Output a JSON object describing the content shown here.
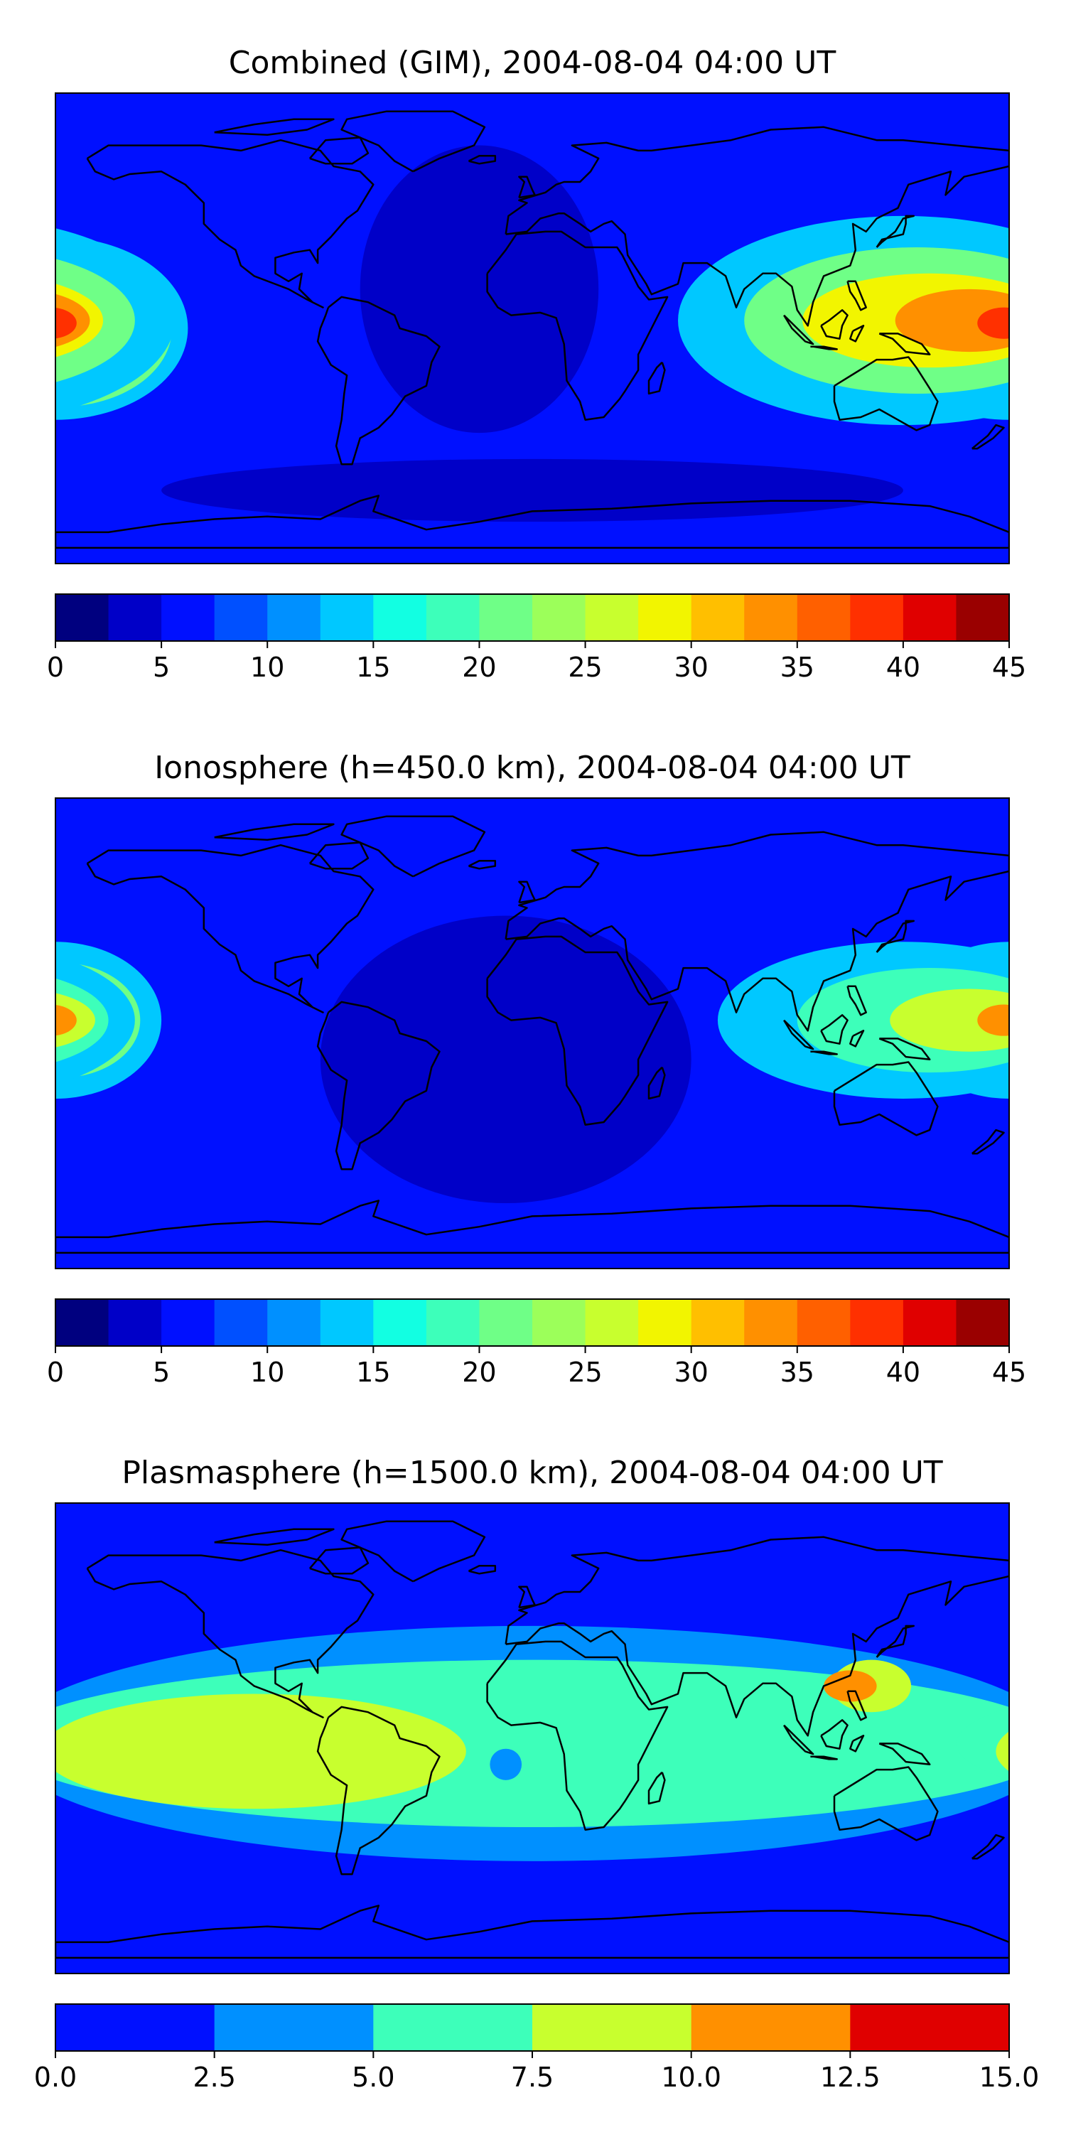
{
  "figure": {
    "panels": [
      {
        "title": "Combined (GIM), 2004-08-04 04:00 UT"
      },
      {
        "title": "Ionosphere  (h=450.0 km), 2004-08-04 04:00 UT"
      },
      {
        "title": "Plasmasphere (h=1500.0 km), 2004-08-04 04:00 UT"
      }
    ]
  },
  "chart_data": [
    {
      "type": "heatmap",
      "title": "Combined (GIM), 2004-08-04 04:00 UT",
      "map_projection": "plate-carree, global, coastlines",
      "colormap": "jet",
      "colorbar": {
        "levels": [
          0,
          2.5,
          5,
          7.5,
          10,
          12.5,
          15,
          17.5,
          20,
          22.5,
          25,
          27.5,
          30,
          32.5,
          35,
          37.5,
          40,
          42.5,
          45
        ],
        "tick_values": [
          0,
          5,
          10,
          15,
          20,
          25,
          30,
          35,
          40,
          45
        ],
        "tick_labels": [
          "0",
          "5",
          "10",
          "15",
          "20",
          "25",
          "30",
          "35",
          "40",
          "45"
        ],
        "colors": [
          "#00007f",
          "#0000c8",
          "#0010ff",
          "#0050ff",
          "#0090ff",
          "#00c8ff",
          "#12ffe2",
          "#3dffba",
          "#6fff87",
          "#9cff5a",
          "#c8ff2e",
          "#f2f500",
          "#ffbf00",
          "#ff9000",
          "#ff6000",
          "#ff3000",
          "#e00000",
          "#9a0000"
        ]
      },
      "background_level": 5,
      "regions": [
        {
          "lon": -180,
          "lat": 0,
          "rx": 50,
          "ry": 35,
          "level": 12.5
        },
        {
          "lon": -178,
          "lat": 0,
          "rx": 42,
          "ry": 30,
          "level": 20
        },
        {
          "lon": -178,
          "lat": 0,
          "rx": 30,
          "ry": 22,
          "level": 27.5
        },
        {
          "lon": -178,
          "lat": 0,
          "rx": 16,
          "ry": 12,
          "level": 35
        },
        {
          "lon": -179,
          "lat": 0,
          "rx": 8,
          "ry": 6,
          "level": 40
        },
        {
          "lon": 140,
          "lat": 3,
          "rx": 85,
          "ry": 40,
          "level": 12.5
        },
        {
          "lon": 145,
          "lat": 3,
          "rx": 65,
          "ry": 28,
          "level": 20
        },
        {
          "lon": 150,
          "lat": 3,
          "rx": 48,
          "ry": 18,
          "level": 27.5
        },
        {
          "lon": 165,
          "lat": 3,
          "rx": 28,
          "ry": 12,
          "level": 32.5
        },
        {
          "lon": 178,
          "lat": 2,
          "rx": 10,
          "ry": 6,
          "level": 37.5
        },
        {
          "lon": -20,
          "lat": 15,
          "rx": 45,
          "ry": 55,
          "level": 2.5
        },
        {
          "lon": 0,
          "lat": -62,
          "rx": 140,
          "ry": 12,
          "level": 2.5
        }
      ]
    },
    {
      "type": "heatmap",
      "title": "Ionosphere  (h=450.0 km), 2004-08-04 04:00 UT",
      "map_projection": "plate-carree, global, coastlines",
      "colormap": "jet",
      "colorbar": {
        "levels": [
          0,
          2.5,
          5,
          7.5,
          10,
          12.5,
          15,
          17.5,
          20,
          22.5,
          25,
          27.5,
          30,
          32.5,
          35,
          37.5,
          40,
          42.5,
          45
        ],
        "tick_values": [
          0,
          5,
          10,
          15,
          20,
          25,
          30,
          35,
          40,
          45
        ],
        "tick_labels": [
          "0",
          "5",
          "10",
          "15",
          "20",
          "25",
          "30",
          "35",
          "40",
          "45"
        ],
        "colors": [
          "#00007f",
          "#0000c8",
          "#0010ff",
          "#0050ff",
          "#0090ff",
          "#00c8ff",
          "#12ffe2",
          "#3dffba",
          "#6fff87",
          "#9cff5a",
          "#c8ff2e",
          "#f2f500",
          "#ffbf00",
          "#ff9000",
          "#ff6000",
          "#ff3000",
          "#e00000",
          "#9a0000"
        ]
      },
      "background_level": 5,
      "regions": [
        {
          "lon": -10,
          "lat": -10,
          "rx": 70,
          "ry": 55,
          "level": 2.5
        },
        {
          "lon": -180,
          "lat": 5,
          "rx": 40,
          "ry": 30,
          "level": 12.5
        },
        {
          "lon": -178,
          "lat": 5,
          "rx": 30,
          "ry": 22,
          "level": 20
        },
        {
          "lon": -178,
          "lat": 5,
          "rx": 18,
          "ry": 12,
          "level": 27.5
        },
        {
          "lon": -179,
          "lat": 5,
          "rx": 8,
          "ry": 5,
          "level": 32.5
        },
        {
          "lon": 140,
          "lat": 5,
          "rx": 70,
          "ry": 30,
          "level": 12.5
        },
        {
          "lon": 150,
          "lat": 5,
          "rx": 50,
          "ry": 20,
          "level": 17.5
        },
        {
          "lon": 165,
          "lat": 5,
          "rx": 30,
          "ry": 12,
          "level": 25
        },
        {
          "lon": 178,
          "lat": 5,
          "rx": 10,
          "ry": 6,
          "level": 32.5
        }
      ]
    },
    {
      "type": "heatmap",
      "title": "Plasmasphere (h=1500.0 km), 2004-08-04 04:00 UT",
      "map_projection": "plate-carree, global, coastlines",
      "colormap": "jet",
      "colorbar": {
        "levels": [
          0,
          2.5,
          5,
          7.5,
          10,
          12.5,
          15
        ],
        "tick_values": [
          0,
          2.5,
          5,
          7.5,
          10,
          12.5,
          15
        ],
        "tick_labels": [
          "0.0",
          "2.5",
          "5.0",
          "7.5",
          "10.0",
          "12.5",
          "15.0"
        ],
        "colors": [
          "#0010ff",
          "#0090ff",
          "#3dffba",
          "#c8ff2e",
          "#ff9000",
          "#e00000"
        ]
      },
      "background_level": 0,
      "regions": [
        {
          "lon": 0,
          "lat": -2,
          "rx": 200,
          "ry": 45,
          "level": 2.5
        },
        {
          "lon": 0,
          "lat": -2,
          "rx": 200,
          "ry": 32,
          "level": 5
        },
        {
          "lon": -105,
          "lat": -5,
          "rx": 80,
          "ry": 22,
          "level": 7.5
        },
        {
          "lon": 128,
          "lat": 20,
          "rx": 15,
          "ry": 10,
          "level": 7.5
        },
        {
          "lon": 120,
          "lat": 20,
          "rx": 10,
          "ry": 6,
          "level": 10
        },
        {
          "lon": -10,
          "lat": -10,
          "rx": 6,
          "ry": 6,
          "level": 2.5
        }
      ]
    }
  ]
}
